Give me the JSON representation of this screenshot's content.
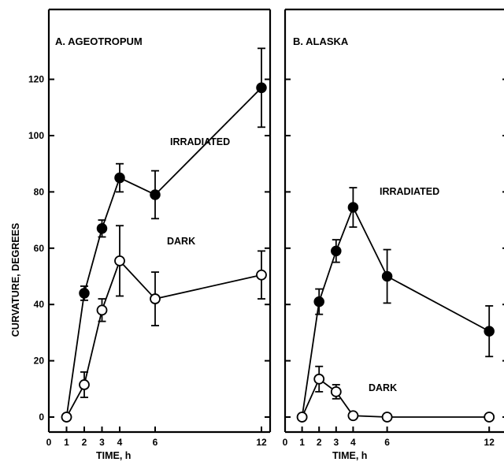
{
  "chart_data": [
    {
      "type": "line",
      "title": "A.   AGEOTROPUM",
      "xlabel": "TIME,     h",
      "ylabel": "CURVATURE,   DEGREES",
      "xlim": [
        0,
        12
      ],
      "ylim": [
        0,
        120
      ],
      "x_ticks": [
        0,
        1,
        2,
        3,
        4,
        6,
        12
      ],
      "y_ticks": [
        0,
        20,
        40,
        60,
        80,
        100,
        120
      ],
      "series": [
        {
          "name": "IRRADIATED",
          "marker": "filled-circle",
          "x": [
            1,
            2,
            3,
            4,
            6,
            12
          ],
          "y": [
            0,
            44,
            67,
            85,
            79,
            117
          ],
          "err": [
            1.5,
            2.5,
            3,
            5,
            8.5,
            14
          ]
        },
        {
          "name": "DARK",
          "marker": "open-circle",
          "x": [
            1,
            2,
            3,
            4,
            6,
            12
          ],
          "y": [
            0,
            11.5,
            38,
            55.5,
            42,
            50.5
          ],
          "err": [
            1.5,
            4.5,
            4,
            12.5,
            9.5,
            8.5
          ]
        }
      ]
    },
    {
      "type": "line",
      "title": "B.   ALASKA",
      "xlabel": "TIME,     h",
      "ylabel": "",
      "xlim": [
        0,
        12
      ],
      "ylim": [
        0,
        120
      ],
      "x_ticks": [
        0,
        1,
        2,
        3,
        4,
        6,
        12
      ],
      "series": [
        {
          "name": "IRRADIATED",
          "marker": "filled-circle",
          "x": [
            1,
            2,
            3,
            4,
            6,
            12
          ],
          "y": [
            0,
            41,
            59,
            74.5,
            50,
            30.5
          ],
          "err": [
            1.5,
            4.5,
            4,
            7,
            9.5,
            9
          ]
        },
        {
          "name": "DARK",
          "marker": "open-circle",
          "x": [
            1,
            2,
            3,
            4,
            6,
            12
          ],
          "y": [
            0,
            13.5,
            9,
            0.5,
            0,
            0
          ],
          "err": [
            1.5,
            4.5,
            2.5,
            2,
            2,
            2
          ]
        }
      ]
    }
  ]
}
